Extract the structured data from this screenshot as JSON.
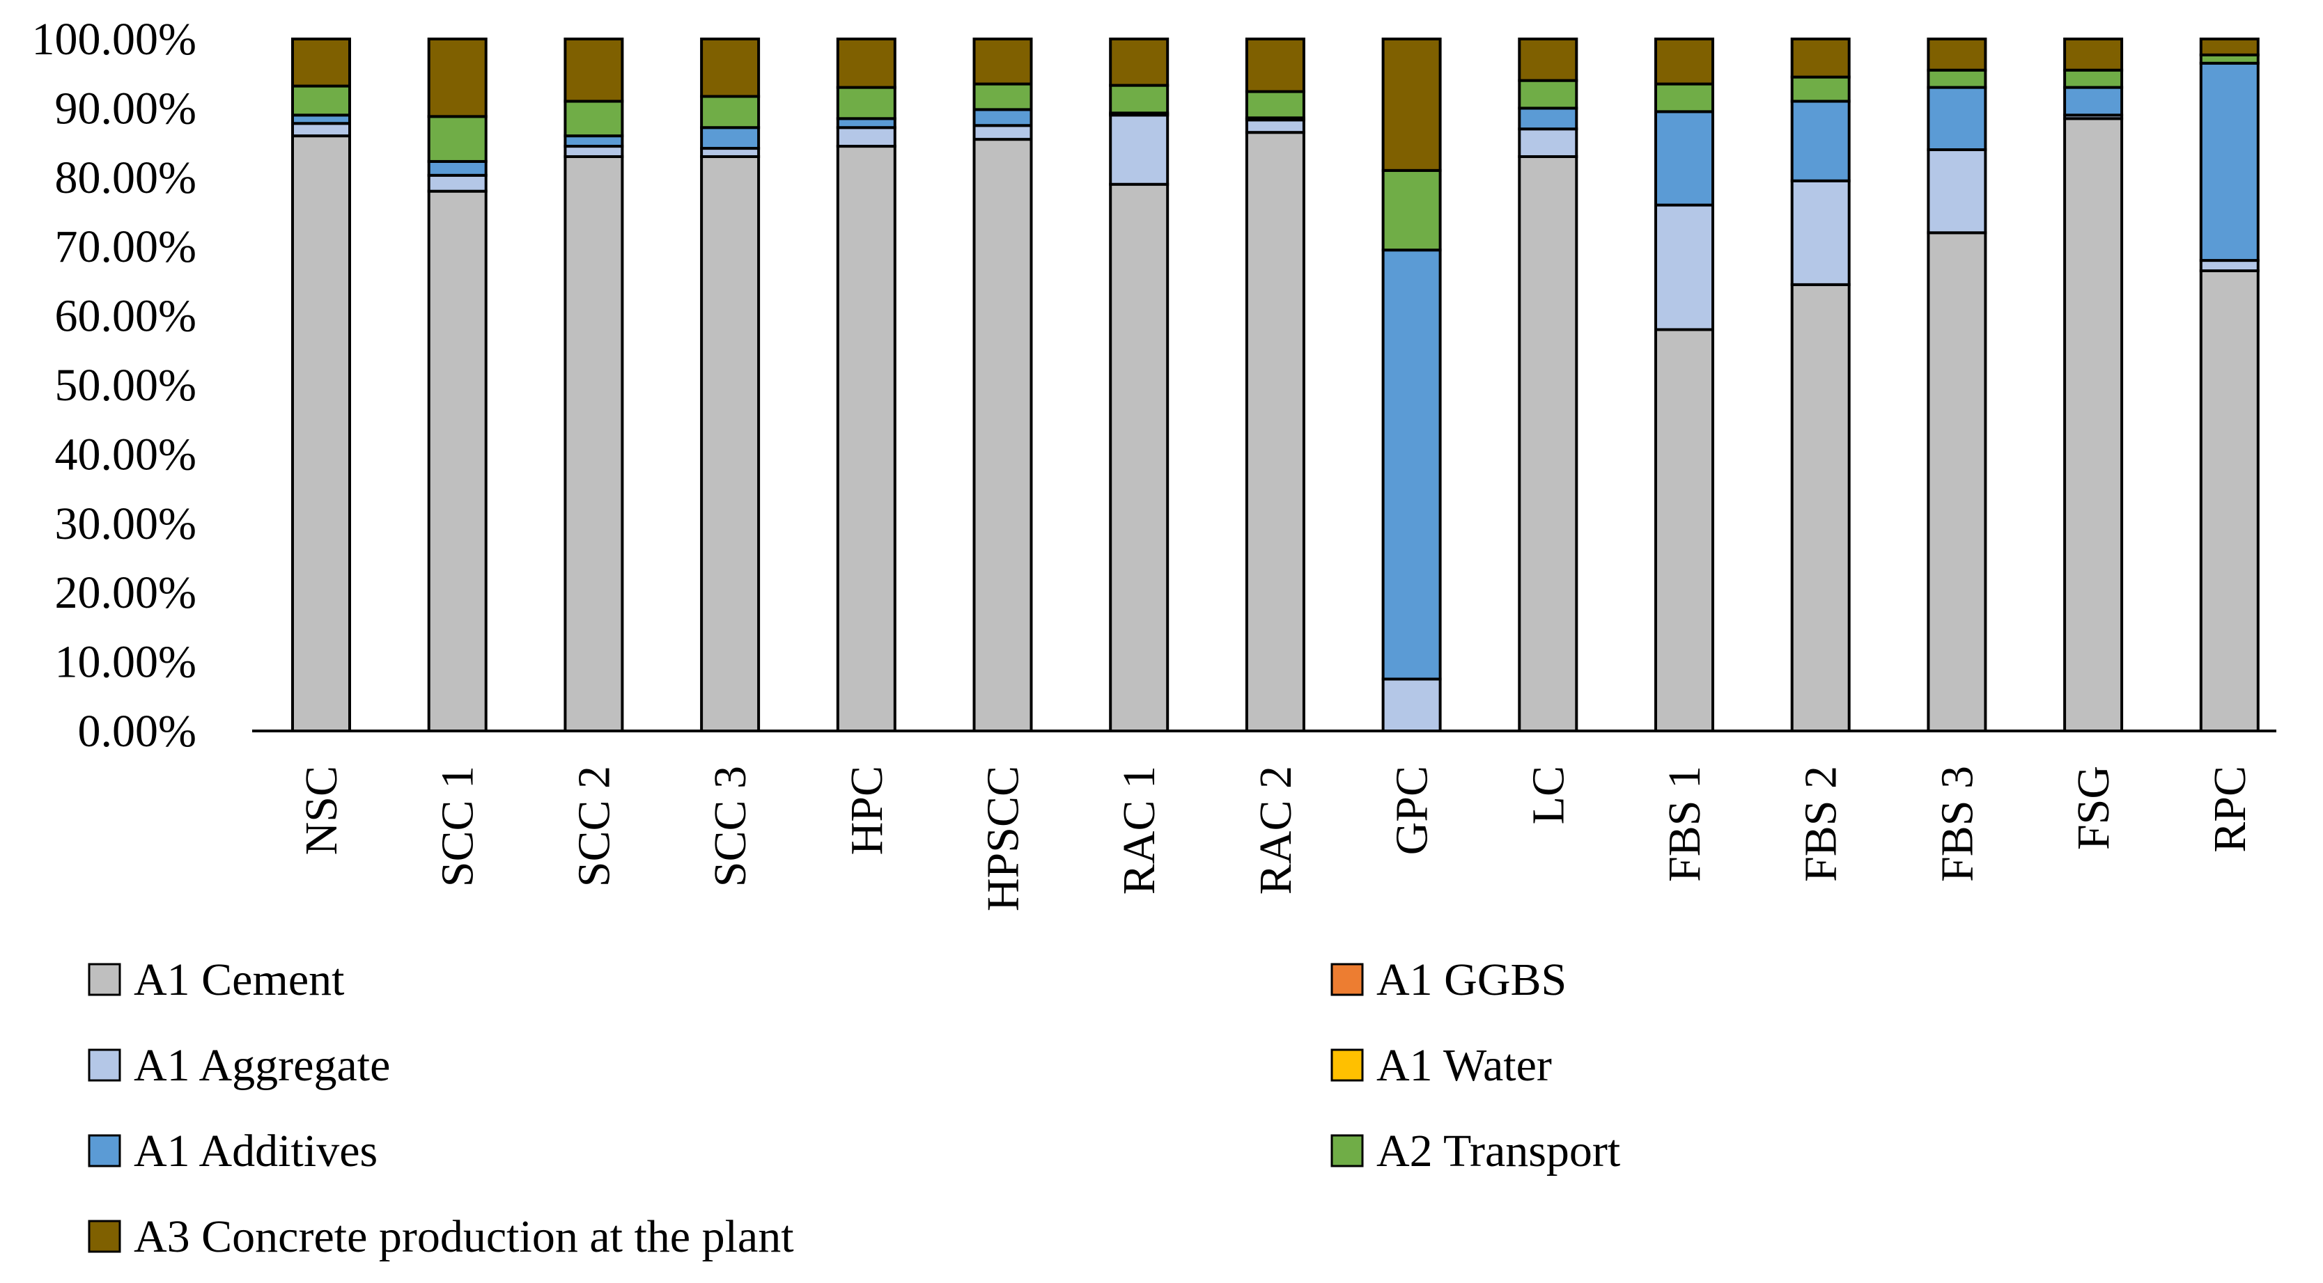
{
  "chart_data": {
    "type": "bar",
    "stacked": true,
    "title": "",
    "xlabel": "",
    "ylabel": "",
    "ylim": [
      0,
      100
    ],
    "y_ticks": [
      "0.00%",
      "10.00%",
      "20.00%",
      "30.00%",
      "40.00%",
      "50.00%",
      "60.00%",
      "70.00%",
      "80.00%",
      "90.00%",
      "100.00%"
    ],
    "categories": [
      "NSC",
      "SCC 1",
      "SCC 2",
      "SCC 3",
      "HPC",
      "HPSCC",
      "RAC 1",
      "RAC 2",
      "GPC",
      "LC",
      "FBS 1",
      "FBS 2",
      "FBS 3",
      "FSG",
      "RPC"
    ],
    "series": [
      {
        "name": "A1 Cement",
        "color": "#BFBFBF",
        "values": [
          86.0,
          78.0,
          83.0,
          83.0,
          84.5,
          85.5,
          79.0,
          86.5,
          0.0,
          83.0,
          58.0,
          64.5,
          72.0,
          88.5,
          66.5
        ]
      },
      {
        "name": "A1 GGBS",
        "color": "#ED7D31",
        "values": [
          0,
          0,
          0,
          0,
          0,
          0,
          0,
          0,
          0,
          0,
          0,
          0,
          0,
          0,
          0
        ]
      },
      {
        "name": "A1 Aggregate",
        "color": "#B4C7E7",
        "values": [
          1.8,
          2.3,
          1.5,
          1.2,
          2.7,
          2.0,
          10.0,
          1.8,
          7.5,
          4.0,
          18.0,
          15.0,
          12.0,
          0.5,
          1.5
        ]
      },
      {
        "name": "A1 Water",
        "color": "#FFC000",
        "values": [
          0,
          0,
          0,
          0,
          0,
          0,
          0,
          0,
          0,
          0,
          0,
          0,
          0,
          0,
          0
        ]
      },
      {
        "name": "A1 Additives",
        "color": "#5B9BD5",
        "values": [
          1.2,
          2.0,
          1.5,
          3.0,
          1.3,
          2.3,
          0.3,
          0.3,
          62.0,
          3.0,
          13.5,
          11.5,
          9.0,
          4.0,
          28.5
        ]
      },
      {
        "name": "A2 Transport",
        "color": "#70AD47",
        "values": [
          4.2,
          6.5,
          5.0,
          4.5,
          4.5,
          3.7,
          4.0,
          3.8,
          11.5,
          4.0,
          4.0,
          3.5,
          2.5,
          2.5,
          1.2
        ]
      },
      {
        "name": "A3 Concrete production at the plant",
        "color": "#7F6000",
        "values": [
          6.8,
          11.2,
          9.0,
          8.3,
          7.0,
          6.5,
          6.7,
          7.6,
          19.0,
          6.0,
          6.5,
          5.5,
          4.5,
          4.5,
          2.3
        ]
      }
    ],
    "legend": {
      "placement": "bottom",
      "columns": 2,
      "entries": [
        "A1 Cement",
        "A1 GGBS",
        "A1 Aggregate",
        "A1 Water",
        "A1 Additives",
        "A2 Transport",
        "A3 Concrete production at the plant"
      ]
    }
  }
}
